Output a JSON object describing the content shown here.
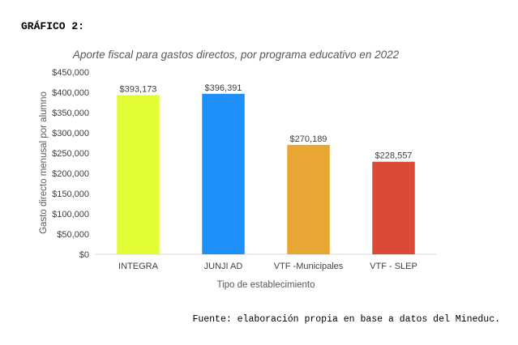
{
  "heading": "GRÁFICO 2:",
  "source": "Fuente: elaboración propia en base a datos del Mineduc.",
  "chart_data": {
    "type": "bar",
    "title": "Aporte fiscal para gastos directos, por programa educativo en 2022",
    "xlabel": "Tipo de establecimiento",
    "ylabel": "Gasto directo menusal por alumno",
    "categories": [
      "INTEGRA",
      "JUNJI AD",
      "VTF -Municipales",
      "VTF - SLEP"
    ],
    "values": [
      393173,
      396391,
      270189,
      228557
    ],
    "data_labels": [
      "$393,173",
      "$396,391",
      "$270,189",
      "$228,557"
    ],
    "colors": [
      "#E2FC35",
      "#1E90FA",
      "#E8A733",
      "#DA4A36"
    ],
    "ylim": [
      0,
      450000
    ],
    "yticks": [
      0,
      50000,
      100000,
      150000,
      200000,
      250000,
      300000,
      350000,
      400000,
      450000
    ],
    "ytick_labels": [
      "$0",
      "$50,000",
      "$100,000",
      "$150,000",
      "$200,000",
      "$250,000",
      "$300,000",
      "$350,000",
      "$400,000",
      "$450,000"
    ],
    "grid": false,
    "legend": "none"
  }
}
